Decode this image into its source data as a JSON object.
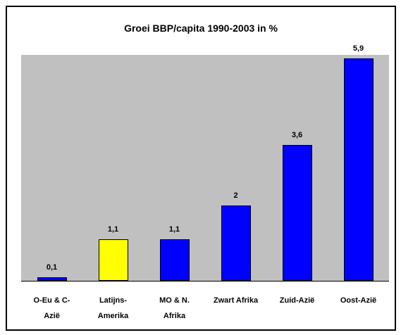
{
  "chart_data": {
    "type": "bar",
    "title": "Groei BBP/capita 1990-2003 in %",
    "categories": [
      "O-Eu & C-Azië",
      "Latijns-Amerika",
      "MO & N. Afrika",
      "Zwart Afrika",
      "Zuid-Azië",
      "Oost-Azië"
    ],
    "values": [
      0.1,
      1.1,
      1.1,
      2,
      3.6,
      5.9
    ],
    "value_labels": [
      "0,1",
      "1,1",
      "1,1",
      "2",
      "3,6",
      "5,9"
    ],
    "colors": [
      "#0000ff",
      "#ffff00",
      "#0000ff",
      "#0000ff",
      "#0000ff",
      "#0000ff"
    ],
    "ylim": [
      0,
      6
    ]
  }
}
